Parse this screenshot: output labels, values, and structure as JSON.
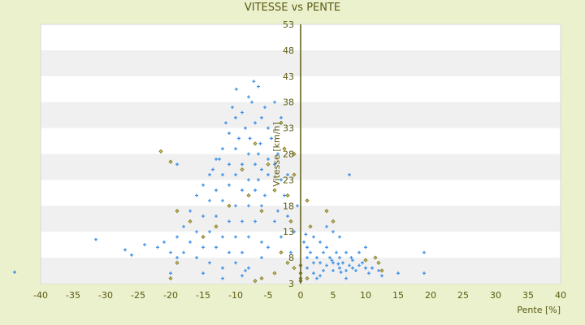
{
  "chart_data": {
    "type": "scatter",
    "title": "VITESSE vs PENTE",
    "xlabel": "Pente [%]",
    "ylabel": "Vitesse [km/h]",
    "xlim": [
      -40,
      40
    ],
    "ylim": [
      3,
      53
    ],
    "xticks": [
      -40,
      -35,
      -30,
      -25,
      -20,
      -15,
      -10,
      -5,
      0,
      5,
      10,
      15,
      20,
      25,
      30,
      35,
      40
    ],
    "yticks": [
      3,
      8,
      13,
      18,
      23,
      28,
      33,
      38,
      43,
      48,
      53
    ],
    "grid": "horizontal bands",
    "colors": {
      "series_main": "#3a8ee6",
      "series_secondary": "#7d7418",
      "axis": "#5a5a10",
      "band": "#f0f0f0"
    },
    "series": [
      {
        "name": "main",
        "marker": "plus",
        "points": [
          [
            -9.9,
            40.5
          ],
          [
            -7.2,
            42
          ],
          [
            -6.5,
            41
          ],
          [
            -8,
            39
          ],
          [
            -7.5,
            38
          ],
          [
            -5.5,
            37
          ],
          [
            -10,
            35
          ],
          [
            -9,
            36
          ],
          [
            -6,
            35
          ],
          [
            -8.5,
            33
          ],
          [
            -7,
            34
          ],
          [
            -5,
            33
          ],
          [
            -11,
            32
          ],
          [
            -9.5,
            31
          ],
          [
            -7.8,
            31
          ],
          [
            -6.2,
            30
          ],
          [
            -4.5,
            31
          ],
          [
            -12,
            29
          ],
          [
            -10,
            29
          ],
          [
            -8,
            28
          ],
          [
            -6.5,
            28
          ],
          [
            -5,
            27
          ],
          [
            -3.5,
            28
          ],
          [
            -13,
            27
          ],
          [
            -11,
            26
          ],
          [
            -9,
            26
          ],
          [
            -7,
            26
          ],
          [
            -6,
            25
          ],
          [
            -4,
            26
          ],
          [
            -14,
            24
          ],
          [
            -12,
            24
          ],
          [
            -10,
            24
          ],
          [
            -8,
            23
          ],
          [
            -6.5,
            23
          ],
          [
            -5,
            24
          ],
          [
            -3,
            23
          ],
          [
            -15,
            22
          ],
          [
            -13,
            21
          ],
          [
            -11,
            22
          ],
          [
            -9,
            21
          ],
          [
            -7,
            21
          ],
          [
            -5.5,
            20
          ],
          [
            -4,
            21
          ],
          [
            -2.5,
            20
          ],
          [
            -16,
            20
          ],
          [
            -14,
            19
          ],
          [
            -12,
            19
          ],
          [
            -10,
            18
          ],
          [
            -8,
            18
          ],
          [
            -6,
            18
          ],
          [
            -3.5,
            17
          ],
          [
            -17,
            17
          ],
          [
            -15,
            16
          ],
          [
            -13,
            16
          ],
          [
            -11,
            15
          ],
          [
            -9,
            15
          ],
          [
            -7,
            15
          ],
          [
            -4,
            15
          ],
          [
            -2,
            16
          ],
          [
            -18,
            14
          ],
          [
            -16,
            13
          ],
          [
            -14,
            13
          ],
          [
            -12,
            12
          ],
          [
            -10,
            12
          ],
          [
            -8,
            12
          ],
          [
            -6,
            11
          ],
          [
            -3,
            12
          ],
          [
            -19,
            12
          ],
          [
            -17,
            11
          ],
          [
            -15,
            10
          ],
          [
            -13,
            10
          ],
          [
            -11,
            9
          ],
          [
            -9,
            9
          ],
          [
            -5,
            10
          ],
          [
            -18,
            9
          ],
          [
            -16,
            8
          ],
          [
            -14,
            7
          ],
          [
            -12,
            6
          ],
          [
            -10,
            7
          ],
          [
            -8,
            6
          ],
          [
            -6,
            8
          ],
          [
            -19,
            8
          ],
          [
            -15,
            5
          ],
          [
            -9,
            4.5
          ],
          [
            -12,
            4
          ],
          [
            -8.5,
            5.5
          ],
          [
            -1,
            13
          ],
          [
            -1.5,
            9
          ],
          [
            -2,
            24
          ],
          [
            -0.5,
            18
          ],
          [
            -12.5,
            27
          ],
          [
            -13.5,
            25
          ],
          [
            -4,
            38
          ],
          [
            -3,
            35
          ],
          [
            -19,
            26
          ],
          [
            -21,
            11
          ],
          [
            -20,
            9
          ],
          [
            -11.5,
            34
          ],
          [
            -10.5,
            37
          ],
          [
            0.5,
            11
          ],
          [
            1,
            10
          ],
          [
            1.5,
            9
          ],
          [
            2,
            12
          ],
          [
            2.5,
            8
          ],
          [
            3,
            11
          ],
          [
            3,
            7
          ],
          [
            3.5,
            9
          ],
          [
            4,
            10
          ],
          [
            4,
            6.5
          ],
          [
            4.5,
            8
          ],
          [
            5,
            13
          ],
          [
            5,
            7
          ],
          [
            5,
            5.5
          ],
          [
            5.5,
            9
          ],
          [
            6,
            6
          ],
          [
            6,
            8
          ],
          [
            6.5,
            7
          ],
          [
            7,
            5.5
          ],
          [
            7,
            9
          ],
          [
            7.5,
            6.5
          ],
          [
            8,
            6
          ],
          [
            8,
            7.5
          ],
          [
            8.5,
            5.5
          ],
          [
            9,
            6.5
          ],
          [
            9.5,
            7
          ],
          [
            10,
            6
          ],
          [
            10.5,
            5
          ],
          [
            11,
            6
          ],
          [
            12,
            5.5
          ],
          [
            1,
            6
          ],
          [
            2,
            5
          ],
          [
            3,
            4.5
          ],
          [
            4,
            14
          ],
          [
            6,
            12
          ],
          [
            2,
            7
          ],
          [
            1,
            8
          ],
          [
            0.8,
            12.5
          ],
          [
            3.5,
            5.5
          ],
          [
            5.8,
            6.8
          ],
          [
            4.8,
            7.5
          ],
          [
            6.2,
            5.2
          ],
          [
            7.8,
            8
          ],
          [
            9,
            9
          ],
          [
            10,
            10
          ],
          [
            2.5,
            4
          ],
          [
            7,
            4
          ],
          [
            12.5,
            4.5
          ],
          [
            -44,
            5.2
          ],
          [
            -31.5,
            11.5
          ],
          [
            -27,
            9.5
          ],
          [
            -26,
            8.5
          ],
          [
            -24,
            10.5
          ],
          [
            -20,
            5
          ],
          [
            19,
            9
          ],
          [
            15,
            5
          ],
          [
            19,
            5
          ],
          [
            7.5,
            24
          ],
          [
            -22,
            10
          ]
        ]
      },
      {
        "name": "secondary",
        "marker": "diamond",
        "points": [
          [
            -21.5,
            28.5
          ],
          [
            -20,
            26.5
          ],
          [
            -19,
            17
          ],
          [
            -20,
            4
          ],
          [
            -19,
            7
          ],
          [
            -17,
            15
          ],
          [
            -15,
            12
          ],
          [
            -13,
            14
          ],
          [
            -11,
            18
          ],
          [
            -9,
            25
          ],
          [
            -8,
            20
          ],
          [
            -7,
            30
          ],
          [
            -6,
            17
          ],
          [
            -5,
            26
          ],
          [
            -4,
            21
          ],
          [
            -3,
            34
          ],
          [
            -2.5,
            29
          ],
          [
            -2,
            20
          ],
          [
            -1,
            28
          ],
          [
            -1,
            24
          ],
          [
            -1.5,
            15
          ],
          [
            -1,
            6
          ],
          [
            0,
            5
          ],
          [
            0,
            3.5
          ],
          [
            0,
            4
          ],
          [
            0,
            6.5
          ],
          [
            -7,
            3.5
          ],
          [
            -6,
            4
          ],
          [
            -4,
            5
          ],
          [
            -3,
            9
          ],
          [
            -2,
            7
          ],
          [
            1,
            19
          ],
          [
            1.5,
            14
          ],
          [
            4,
            17
          ],
          [
            5,
            15
          ],
          [
            10,
            7.5
          ],
          [
            12,
            7
          ],
          [
            12.5,
            5.5
          ],
          [
            11.5,
            8
          ],
          [
            1,
            4
          ]
        ]
      }
    ]
  }
}
